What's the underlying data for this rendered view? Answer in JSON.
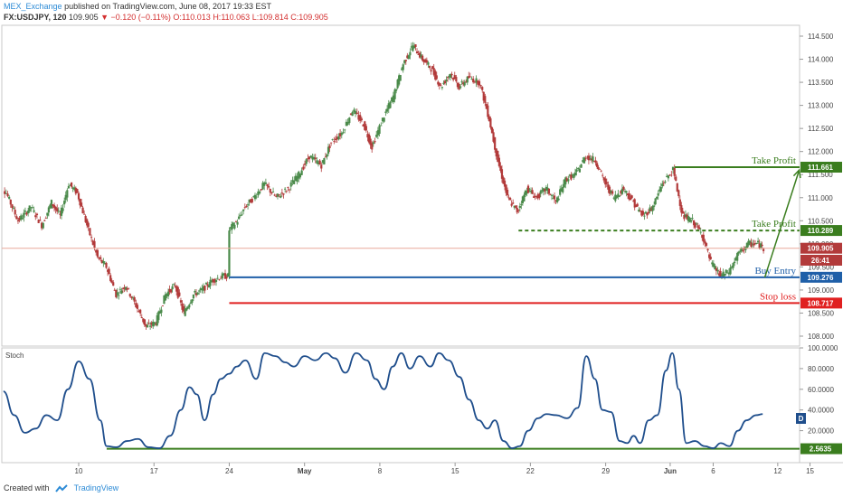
{
  "header": {
    "author": "MEX_Exchange",
    "published": "published on TradingView.com, June 08, 2017 19:33 EST",
    "symbol": "FX:USDJPY, 120",
    "last": "109.905",
    "change": "▼ −0.120 (−0.11%)",
    "open": "O:110.013",
    "high": "H:110.063",
    "low": "L:109.814",
    "close": "C:109.905"
  },
  "footer": {
    "created_with": "Created with",
    "brand": "TradingView"
  },
  "colors": {
    "bull": "#4a8a4a",
    "bear": "#b23a3a",
    "stoch": "#1f4e8c",
    "tp": "#3a7d1e",
    "entry": "#1f5fa8",
    "stop": "#e02020",
    "last_line": "#e8a89a"
  },
  "chart_data": [
    {
      "type": "candlestick",
      "title": "FX:USDJPY, 120",
      "y_ticks": [
        "114.500",
        "114.000",
        "113.500",
        "113.000",
        "112.500",
        "112.000",
        "111.500",
        "111.000",
        "110.500",
        "110.000",
        "109.500",
        "109.000",
        "108.500",
        "108.000"
      ],
      "ylim": [
        107.9,
        114.85
      ],
      "x_ticks": [
        "10",
        "17",
        "24",
        "May",
        "8",
        "15",
        "22",
        "29",
        "Jun",
        "6",
        "12",
        "15"
      ],
      "x_tick_days": [
        0,
        7,
        14,
        21,
        28,
        35,
        42,
        49,
        55,
        59,
        65,
        68
      ],
      "close_path": [
        {
          "d": -7.6,
          "v": 111.4
        },
        {
          "d": -6.6,
          "v": 111.1
        },
        {
          "d": -5.5,
          "v": 110.5
        },
        {
          "d": -4.3,
          "v": 110.8
        },
        {
          "d": -3.3,
          "v": 110.4
        },
        {
          "d": -2.4,
          "v": 110.9
        },
        {
          "d": -1.6,
          "v": 110.6
        },
        {
          "d": -0.8,
          "v": 111.3
        },
        {
          "d": 0.0,
          "v": 111.1
        },
        {
          "d": 0.9,
          "v": 110.4
        },
        {
          "d": 1.9,
          "v": 109.7
        },
        {
          "d": 2.7,
          "v": 109.5
        },
        {
          "d": 3.6,
          "v": 108.9
        },
        {
          "d": 4.5,
          "v": 109.1
        },
        {
          "d": 5.6,
          "v": 108.6
        },
        {
          "d": 6.4,
          "v": 108.2
        },
        {
          "d": 7.3,
          "v": 108.3
        },
        {
          "d": 8.2,
          "v": 108.9
        },
        {
          "d": 9.1,
          "v": 109.1
        },
        {
          "d": 9.9,
          "v": 108.5
        },
        {
          "d": 10.8,
          "v": 108.9
        },
        {
          "d": 11.6,
          "v": 109.0
        },
        {
          "d": 12.5,
          "v": 109.2
        },
        {
          "d": 13.5,
          "v": 109.3
        },
        {
          "d": 14.0,
          "v": 109.3
        },
        {
          "d": 14.1,
          "v": 110.3
        },
        {
          "d": 14.9,
          "v": 110.5
        },
        {
          "d": 15.6,
          "v": 110.8
        },
        {
          "d": 16.4,
          "v": 111.0
        },
        {
          "d": 17.4,
          "v": 111.3
        },
        {
          "d": 18.5,
          "v": 111.0
        },
        {
          "d": 19.6,
          "v": 111.2
        },
        {
          "d": 20.6,
          "v": 111.5
        },
        {
          "d": 21.6,
          "v": 111.9
        },
        {
          "d": 22.7,
          "v": 111.7
        },
        {
          "d": 23.6,
          "v": 112.2
        },
        {
          "d": 24.6,
          "v": 112.4
        },
        {
          "d": 25.6,
          "v": 112.9
        },
        {
          "d": 26.6,
          "v": 112.6
        },
        {
          "d": 27.4,
          "v": 112.1
        },
        {
          "d": 28.4,
          "v": 112.7
        },
        {
          "d": 29.4,
          "v": 113.2
        },
        {
          "d": 30.3,
          "v": 113.9
        },
        {
          "d": 31.2,
          "v": 114.3
        },
        {
          "d": 32.1,
          "v": 114.0
        },
        {
          "d": 32.9,
          "v": 113.8
        },
        {
          "d": 33.8,
          "v": 113.4
        },
        {
          "d": 34.7,
          "v": 113.7
        },
        {
          "d": 35.5,
          "v": 113.4
        },
        {
          "d": 36.4,
          "v": 113.6
        },
        {
          "d": 37.4,
          "v": 113.5
        },
        {
          "d": 38.3,
          "v": 112.7
        },
        {
          "d": 39.1,
          "v": 111.8
        },
        {
          "d": 40.0,
          "v": 111.0
        },
        {
          "d": 40.9,
          "v": 110.7
        },
        {
          "d": 41.8,
          "v": 111.2
        },
        {
          "d": 42.7,
          "v": 111.0
        },
        {
          "d": 43.6,
          "v": 111.2
        },
        {
          "d": 44.5,
          "v": 110.9
        },
        {
          "d": 45.4,
          "v": 111.4
        },
        {
          "d": 46.3,
          "v": 111.5
        },
        {
          "d": 47.3,
          "v": 111.9
        },
        {
          "d": 48.2,
          "v": 111.8
        },
        {
          "d": 49.1,
          "v": 111.3
        },
        {
          "d": 49.9,
          "v": 111.0
        },
        {
          "d": 50.8,
          "v": 111.2
        },
        {
          "d": 51.7,
          "v": 110.9
        },
        {
          "d": 52.6,
          "v": 110.6
        },
        {
          "d": 53.5,
          "v": 110.8
        },
        {
          "d": 54.4,
          "v": 111.3
        },
        {
          "d": 55.4,
          "v": 111.6
        },
        {
          "d": 56.3,
          "v": 110.6
        },
        {
          "d": 57.2,
          "v": 110.5
        },
        {
          "d": 58.1,
          "v": 110.2
        },
        {
          "d": 58.9,
          "v": 109.6
        },
        {
          "d": 59.8,
          "v": 109.3
        },
        {
          "d": 60.6,
          "v": 109.4
        },
        {
          "d": 61.5,
          "v": 109.8
        },
        {
          "d": 62.4,
          "v": 110.0
        },
        {
          "d": 63.3,
          "v": 110.0
        },
        {
          "d": 63.8,
          "v": 109.9
        }
      ],
      "last_price": 109.905,
      "price_labels": [
        {
          "value": 111.661,
          "text": "111.661",
          "color": "tp"
        },
        {
          "value": 110.289,
          "text": "110.289",
          "color": "tp"
        },
        {
          "value": 109.905,
          "text": "109.905",
          "color": "bear"
        },
        {
          "value": 109.645,
          "text": "26:41",
          "color": "bear"
        },
        {
          "value": 109.276,
          "text": "109.276",
          "color": "entry"
        },
        {
          "value": 108.717,
          "text": "108.717",
          "color": "stop"
        }
      ],
      "annotations": [
        {
          "name": "take-profit-1",
          "label": "Take Profit",
          "value": 111.661,
          "from_day": 55.4,
          "color": "tp",
          "dashed": false
        },
        {
          "name": "take-profit-2",
          "label": "Take Profit",
          "value": 110.289,
          "from_day": 40.9,
          "color": "tp",
          "dashed": true
        },
        {
          "name": "buy-entry",
          "label": "Buy Entry",
          "value": 109.276,
          "from_day": 14.0,
          "color": "entry",
          "dashed": false
        },
        {
          "name": "stop-loss",
          "label": "Stop loss",
          "value": 108.717,
          "from_day": 14.0,
          "color": "stop",
          "dashed": false
        }
      ],
      "arrow": {
        "from_day": 63.8,
        "from_value": 109.276,
        "to_day": 67.0,
        "to_value": 111.6
      }
    },
    {
      "type": "line",
      "title": "Stoch",
      "series_label": "D",
      "y_ticks": [
        "100.0000",
        "80.0000",
        "60.0000",
        "40.0000",
        "20.0000"
      ],
      "ylim": [
        0,
        100
      ],
      "level": 2.5635,
      "level_text": "2.5635",
      "series": [
        {
          "name": "D",
          "points": [
            {
              "d": -8,
              "v": 62
            },
            {
              "d": -7,
              "v": 58
            },
            {
              "d": -6,
              "v": 35
            },
            {
              "d": -5,
              "v": 18
            },
            {
              "d": -4,
              "v": 22
            },
            {
              "d": -3,
              "v": 35
            },
            {
              "d": -2,
              "v": 30
            },
            {
              "d": -1,
              "v": 60
            },
            {
              "d": 0,
              "v": 87
            },
            {
              "d": 1,
              "v": 70
            },
            {
              "d": 2,
              "v": 30
            },
            {
              "d": 2.6,
              "v": 5
            },
            {
              "d": 3.5,
              "v": 4
            },
            {
              "d": 4.5,
              "v": 10
            },
            {
              "d": 5.5,
              "v": 12
            },
            {
              "d": 6.5,
              "v": 4
            },
            {
              "d": 7.5,
              "v": 3
            },
            {
              "d": 8.5,
              "v": 15
            },
            {
              "d": 9.5,
              "v": 40
            },
            {
              "d": 10.3,
              "v": 62
            },
            {
              "d": 11,
              "v": 55
            },
            {
              "d": 11.7,
              "v": 30
            },
            {
              "d": 12.5,
              "v": 55
            },
            {
              "d": 13.2,
              "v": 70
            },
            {
              "d": 14,
              "v": 75
            },
            {
              "d": 14.7,
              "v": 82
            },
            {
              "d": 15.5,
              "v": 88
            },
            {
              "d": 16.5,
              "v": 70
            },
            {
              "d": 17.3,
              "v": 95
            },
            {
              "d": 18.3,
              "v": 92
            },
            {
              "d": 19.2,
              "v": 86
            },
            {
              "d": 20,
              "v": 82
            },
            {
              "d": 21,
              "v": 92
            },
            {
              "d": 22,
              "v": 88
            },
            {
              "d": 23,
              "v": 95
            },
            {
              "d": 23.8,
              "v": 90
            },
            {
              "d": 24.8,
              "v": 76
            },
            {
              "d": 25.8,
              "v": 95
            },
            {
              "d": 26.8,
              "v": 88
            },
            {
              "d": 27.6,
              "v": 70
            },
            {
              "d": 28.4,
              "v": 60
            },
            {
              "d": 29.2,
              "v": 82
            },
            {
              "d": 30,
              "v": 95
            },
            {
              "d": 30.8,
              "v": 80
            },
            {
              "d": 31.7,
              "v": 92
            },
            {
              "d": 32.7,
              "v": 82
            },
            {
              "d": 33.5,
              "v": 95
            },
            {
              "d": 34.4,
              "v": 88
            },
            {
              "d": 35.4,
              "v": 72
            },
            {
              "d": 36.3,
              "v": 50
            },
            {
              "d": 37.2,
              "v": 30
            },
            {
              "d": 38,
              "v": 22
            },
            {
              "d": 38.7,
              "v": 30
            },
            {
              "d": 39.5,
              "v": 10
            },
            {
              "d": 40.3,
              "v": 3
            },
            {
              "d": 41,
              "v": 5
            },
            {
              "d": 41.8,
              "v": 20
            },
            {
              "d": 42.7,
              "v": 32
            },
            {
              "d": 43.5,
              "v": 36
            },
            {
              "d": 44.4,
              "v": 35
            },
            {
              "d": 45.4,
              "v": 32
            },
            {
              "d": 46.4,
              "v": 42
            },
            {
              "d": 47.2,
              "v": 92
            },
            {
              "d": 48,
              "v": 70
            },
            {
              "d": 48.7,
              "v": 40
            },
            {
              "d": 49.5,
              "v": 38
            },
            {
              "d": 50.3,
              "v": 10
            },
            {
              "d": 51,
              "v": 8
            },
            {
              "d": 51.6,
              "v": 15
            },
            {
              "d": 52.2,
              "v": 8
            },
            {
              "d": 53,
              "v": 30
            },
            {
              "d": 53.8,
              "v": 35
            },
            {
              "d": 54.6,
              "v": 78
            },
            {
              "d": 55.2,
              "v": 95
            },
            {
              "d": 55.8,
              "v": 60
            },
            {
              "d": 56.5,
              "v": 8
            },
            {
              "d": 57.3,
              "v": 10
            },
            {
              "d": 58.2,
              "v": 5
            },
            {
              "d": 59,
              "v": 3
            },
            {
              "d": 59.7,
              "v": 8
            },
            {
              "d": 60.5,
              "v": 5
            },
            {
              "d": 61.3,
              "v": 20
            },
            {
              "d": 62.1,
              "v": 30
            },
            {
              "d": 63,
              "v": 35
            },
            {
              "d": 63.6,
              "v": 36
            }
          ]
        }
      ]
    }
  ]
}
